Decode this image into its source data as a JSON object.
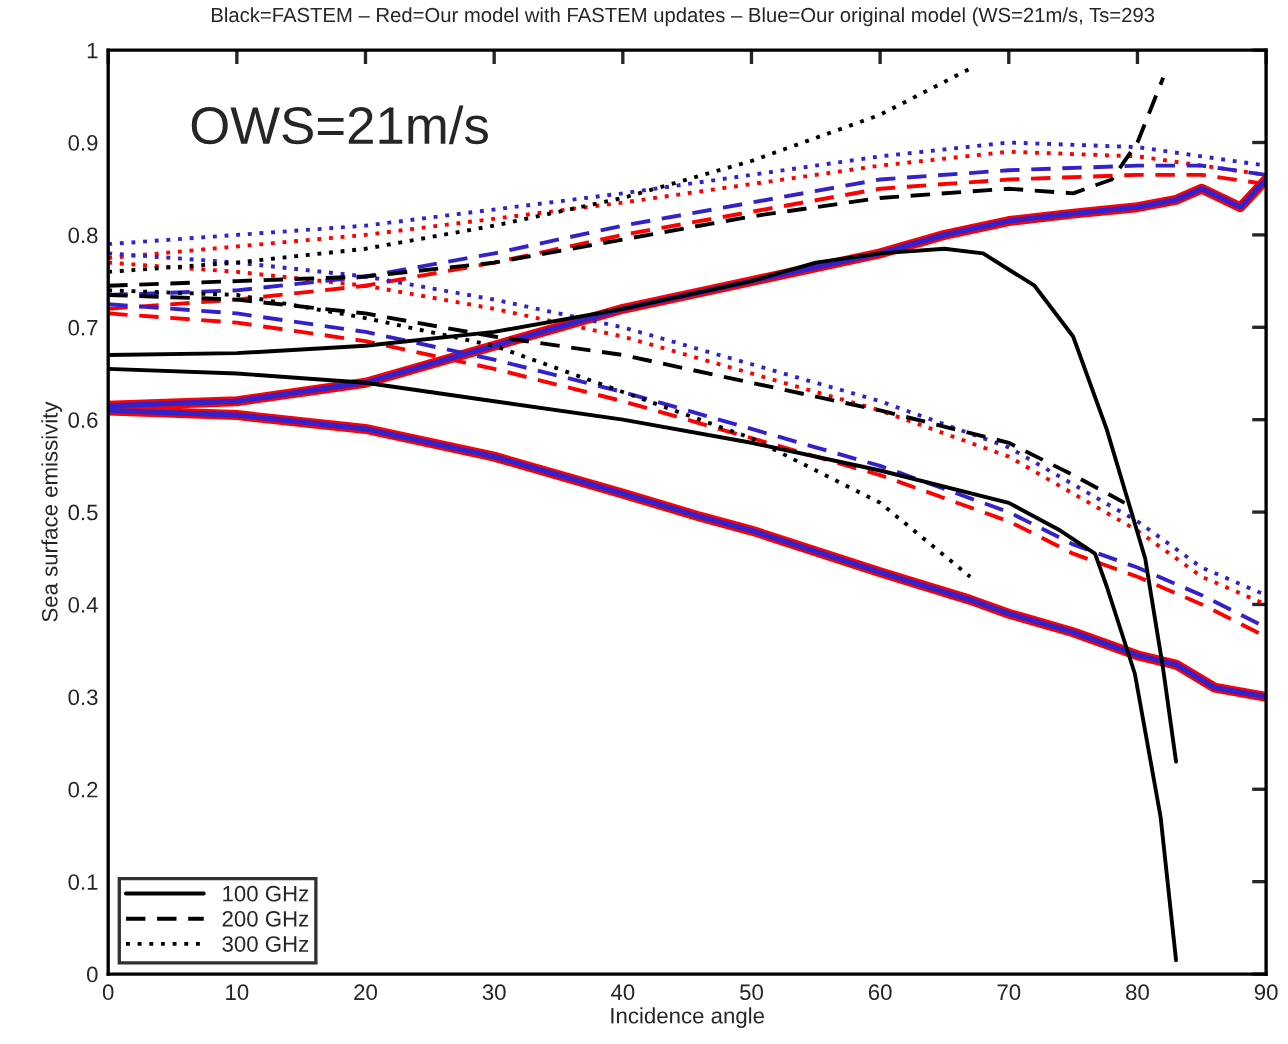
{
  "chart_data": {
    "type": "line",
    "title": "Black=FASTEM – Red=Our model with FASTEM updates – Blue=Our original model (WS=21m/s, Ts=293",
    "xlabel": "Incidence angle",
    "ylabel": "Sea surface emissivity",
    "annotations": [
      "OWS=21m/s"
    ],
    "xlim": [
      0,
      90
    ],
    "ylim": [
      0,
      1
    ],
    "xticks": [
      0,
      10,
      20,
      30,
      40,
      50,
      60,
      70,
      80,
      90
    ],
    "yticks": [
      0,
      0.1,
      0.2,
      0.3,
      0.4,
      0.5,
      0.6,
      0.7,
      0.8,
      0.9,
      1
    ],
    "grid": false,
    "legend": "bottom left",
    "marker": "none",
    "series": [
      {
        "color": "#ff0000",
        "line_style": "solid",
        "x": [
          0,
          10,
          20,
          30,
          40,
          50,
          60,
          65,
          70,
          75,
          80,
          83,
          85,
          88,
          90
        ],
        "values": [
          0.615,
          0.62,
          0.64,
          0.68,
          0.72,
          0.75,
          0.78,
          0.8,
          0.815,
          0.823,
          0.83,
          0.838,
          0.85,
          0.83,
          0.86
        ]
      },
      {
        "color": "#ff0000",
        "line_style": "solid",
        "x": [
          0,
          10,
          20,
          30,
          40,
          46,
          50,
          60,
          67,
          70,
          75,
          80,
          83,
          86,
          90
        ],
        "values": [
          0.61,
          0.605,
          0.59,
          0.56,
          0.52,
          0.495,
          0.48,
          0.435,
          0.405,
          0.39,
          0.37,
          0.345,
          0.335,
          0.31,
          0.3
        ]
      },
      {
        "color": "#ff0000",
        "line_style": "dashed",
        "x": [
          0,
          10,
          20,
          30,
          40,
          50,
          60,
          70,
          80,
          85,
          90
        ],
        "values": [
          0.72,
          0.73,
          0.745,
          0.77,
          0.8,
          0.825,
          0.85,
          0.86,
          0.865,
          0.865,
          0.855
        ]
      },
      {
        "color": "#ff0000",
        "line_style": "dashed",
        "x": [
          0,
          10,
          20,
          30,
          40,
          50,
          60,
          70,
          75,
          80,
          85,
          90
        ],
        "values": [
          0.715,
          0.705,
          0.685,
          0.655,
          0.62,
          0.58,
          0.54,
          0.49,
          0.455,
          0.43,
          0.4,
          0.365
        ]
      },
      {
        "color": "#ff0000",
        "line_style": "dotted",
        "x": [
          0,
          20,
          40,
          50,
          60,
          70,
          80,
          90
        ],
        "values": [
          0.775,
          0.8,
          0.835,
          0.855,
          0.875,
          0.89,
          0.885,
          0.865
        ]
      },
      {
        "color": "#ff0000",
        "line_style": "dotted",
        "x": [
          0,
          10,
          20,
          30,
          40,
          50,
          60,
          70,
          80,
          85,
          90
        ],
        "values": [
          0.77,
          0.76,
          0.745,
          0.72,
          0.69,
          0.65,
          0.61,
          0.56,
          0.48,
          0.43,
          0.4
        ]
      },
      {
        "color": "#3322cc",
        "line_style": "solid",
        "x": [
          0,
          10,
          20,
          30,
          40,
          50,
          60,
          65,
          70,
          75,
          80,
          83,
          85,
          88,
          90
        ],
        "values": [
          0.615,
          0.62,
          0.64,
          0.68,
          0.72,
          0.75,
          0.78,
          0.8,
          0.815,
          0.823,
          0.83,
          0.838,
          0.85,
          0.83,
          0.86
        ]
      },
      {
        "color": "#3322cc",
        "line_style": "solid",
        "x": [
          0,
          10,
          20,
          30,
          40,
          46,
          50,
          60,
          67,
          70,
          75,
          80,
          83,
          86,
          90
        ],
        "values": [
          0.61,
          0.605,
          0.59,
          0.56,
          0.52,
          0.495,
          0.48,
          0.435,
          0.405,
          0.39,
          0.37,
          0.345,
          0.335,
          0.31,
          0.3
        ]
      },
      {
        "color": "#3322cc",
        "line_style": "dashed",
        "x": [
          0,
          10,
          20,
          30,
          40,
          50,
          60,
          70,
          80,
          85,
          90
        ],
        "values": [
          0.735,
          0.74,
          0.755,
          0.78,
          0.81,
          0.835,
          0.86,
          0.87,
          0.875,
          0.875,
          0.865
        ]
      },
      {
        "color": "#3322cc",
        "line_style": "dashed",
        "x": [
          0,
          10,
          20,
          30,
          40,
          50,
          60,
          70,
          75,
          80,
          85,
          90
        ],
        "values": [
          0.725,
          0.715,
          0.695,
          0.665,
          0.63,
          0.59,
          0.55,
          0.5,
          0.465,
          0.44,
          0.41,
          0.375
        ]
      },
      {
        "color": "#3322cc",
        "line_style": "dotted",
        "x": [
          0,
          20,
          40,
          50,
          60,
          70,
          80,
          90
        ],
        "values": [
          0.79,
          0.81,
          0.845,
          0.865,
          0.885,
          0.9,
          0.895,
          0.875
        ]
      },
      {
        "color": "#3322cc",
        "line_style": "dotted",
        "x": [
          0,
          10,
          20,
          30,
          40,
          50,
          60,
          70,
          80,
          85,
          90
        ],
        "values": [
          0.78,
          0.77,
          0.755,
          0.73,
          0.7,
          0.66,
          0.62,
          0.57,
          0.49,
          0.44,
          0.41
        ]
      },
      {
        "name": "100 GHz",
        "color": "#000000",
        "line_style": "solid",
        "x": [
          0,
          10,
          20,
          30,
          40,
          50,
          55,
          60,
          65,
          68,
          72,
          75,
          77.6,
          80.6,
          82,
          83
        ],
        "values": [
          0.67,
          0.672,
          0.68,
          0.695,
          0.72,
          0.75,
          0.77,
          0.78,
          0.785,
          0.78,
          0.745,
          0.69,
          0.59,
          0.45,
          0.33,
          0.23
        ]
      },
      {
        "color": "#000000",
        "line_style": "solid",
        "x": [
          0,
          10,
          20,
          30,
          40,
          50,
          60,
          70,
          74,
          76.7,
          77.6,
          79.8,
          81.8,
          83
        ],
        "values": [
          0.655,
          0.65,
          0.64,
          0.62,
          0.6,
          0.575,
          0.545,
          0.51,
          0.48,
          0.455,
          0.42,
          0.325,
          0.17,
          0.015
        ]
      },
      {
        "name": "200 GHz",
        "color": "#000000",
        "line_style": "dashed",
        "x": [
          0,
          10,
          20,
          30,
          40,
          50,
          60,
          70,
          75,
          78,
          80,
          82
        ],
        "values": [
          0.745,
          0.75,
          0.755,
          0.77,
          0.795,
          0.82,
          0.84,
          0.85,
          0.845,
          0.86,
          0.9,
          0.97
        ]
      },
      {
        "color": "#000000",
        "line_style": "dashed",
        "x": [
          0,
          10,
          20,
          30,
          40,
          50,
          60,
          70,
          75,
          79
        ],
        "values": [
          0.735,
          0.73,
          0.715,
          0.69,
          0.67,
          0.64,
          0.61,
          0.575,
          0.54,
          0.51
        ]
      },
      {
        "name": "300 GHz",
        "color": "#000000",
        "line_style": "dotted",
        "x": [
          0,
          10,
          20,
          30,
          40,
          50,
          60,
          67
        ],
        "values": [
          0.76,
          0.77,
          0.785,
          0.81,
          0.84,
          0.88,
          0.93,
          0.98
        ]
      },
      {
        "color": "#000000",
        "line_style": "dotted",
        "x": [
          0,
          10,
          20,
          30,
          40,
          50,
          60,
          67
        ],
        "values": [
          0.74,
          0.735,
          0.71,
          0.68,
          0.63,
          0.58,
          0.51,
          0.43
        ]
      }
    ]
  }
}
